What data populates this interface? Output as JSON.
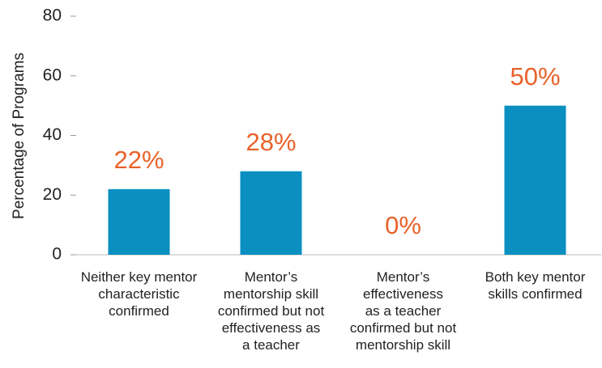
{
  "chart_data": {
    "type": "bar",
    "y_label": "Percentage of Programs",
    "categories": [
      "Neither key mentor\ncharacteristic\nconfirmed",
      "Mentor’s\nmentorship skill\nconfirmed but not\neffectiveness as\na teacher",
      "Mentor’s\neffectiveness\nas a teacher\nconfirmed but not\nmentorship skill",
      "Both key mentor\nskills confirmed"
    ],
    "values": [
      22,
      28,
      0,
      50
    ],
    "value_labels": [
      "22%",
      "28%",
      "0%",
      "50%"
    ],
    "color": "#0a8fc0",
    "ylim": [
      0,
      80
    ],
    "yticks": [
      0,
      20,
      40,
      60,
      80
    ]
  }
}
